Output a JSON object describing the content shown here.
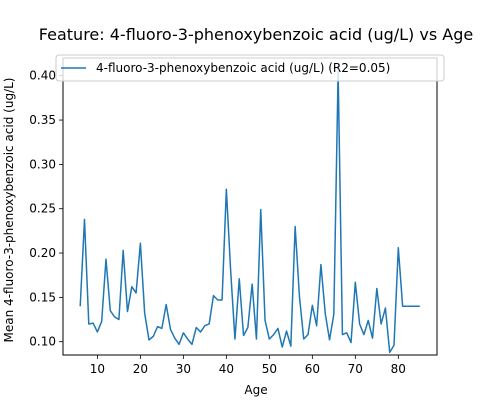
{
  "chart_data": {
    "type": "line",
    "title": "Feature: 4-fluoro-3-phenoxybenzoic acid (ug/L) vs Age",
    "xlabel": "Age",
    "ylabel": "Mean 4-fluoro-3-phenoxybenzoic acid (ug/L)",
    "xlim": [
      2,
      89
    ],
    "ylim": [
      0.085,
      0.42
    ],
    "xticks": [
      10,
      20,
      30,
      40,
      50,
      60,
      70,
      80
    ],
    "yticks": [
      0.1,
      0.15,
      0.2,
      0.25,
      0.3,
      0.35,
      0.4
    ],
    "grid": false,
    "legend_position": "top-left",
    "series": [
      {
        "name": "4-fluoro-3-phenoxybenzoic acid (ug/L) (R2=0.05)",
        "color": "#1f77b4",
        "x": [
          6,
          7,
          8,
          9,
          10,
          11,
          12,
          13,
          14,
          15,
          16,
          17,
          18,
          19,
          20,
          21,
          22,
          23,
          24,
          25,
          26,
          27,
          28,
          29,
          30,
          31,
          32,
          33,
          34,
          35,
          36,
          37,
          38,
          39,
          40,
          41,
          42,
          43,
          44,
          45,
          46,
          47,
          48,
          49,
          50,
          51,
          52,
          53,
          54,
          55,
          56,
          57,
          58,
          59,
          60,
          61,
          62,
          63,
          64,
          65,
          66,
          67,
          68,
          69,
          70,
          71,
          72,
          73,
          74,
          75,
          76,
          77,
          78,
          79,
          80,
          81,
          82,
          83,
          84,
          85
        ],
        "y": [
          0.14,
          0.238,
          0.12,
          0.121,
          0.111,
          0.123,
          0.193,
          0.135,
          0.128,
          0.125,
          0.203,
          0.134,
          0.162,
          0.155,
          0.211,
          0.132,
          0.102,
          0.106,
          0.117,
          0.115,
          0.142,
          0.114,
          0.104,
          0.097,
          0.11,
          0.103,
          0.097,
          0.116,
          0.111,
          0.118,
          0.12,
          0.152,
          0.147,
          0.147,
          0.272,
          0.18,
          0.103,
          0.171,
          0.107,
          0.116,
          0.165,
          0.103,
          0.249,
          0.124,
          0.103,
          0.108,
          0.115,
          0.094,
          0.112,
          0.095,
          0.23,
          0.151,
          0.103,
          0.108,
          0.141,
          0.118,
          0.187,
          0.132,
          0.102,
          0.131,
          0.405,
          0.108,
          0.11,
          0.099,
          0.167,
          0.12,
          0.108,
          0.124,
          0.104,
          0.16,
          0.12,
          0.138,
          0.088,
          0.096,
          0.206,
          0.14,
          0.14,
          0.14,
          0.14,
          0.14
        ]
      }
    ]
  }
}
